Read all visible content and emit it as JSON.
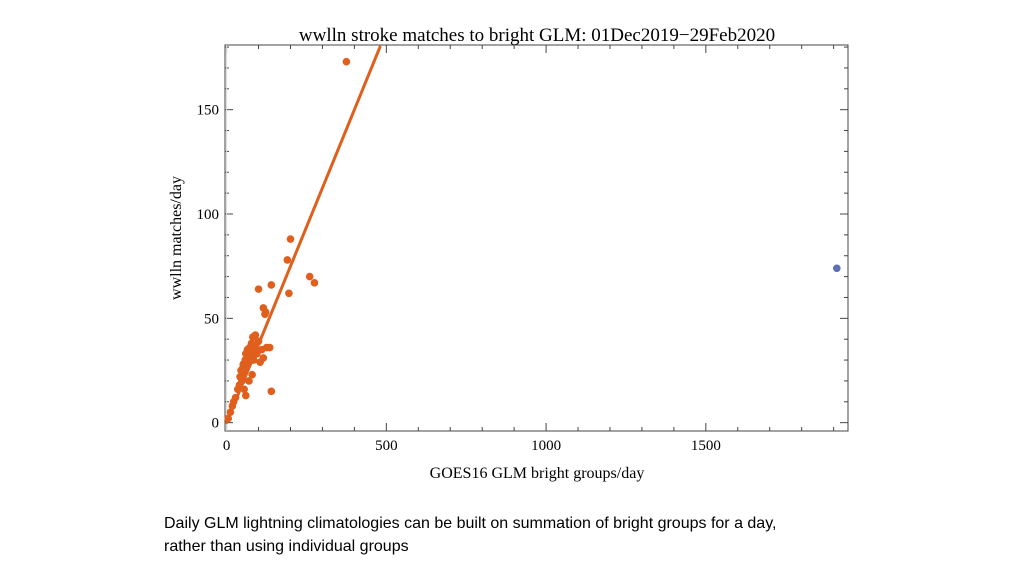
{
  "chart_data": {
    "type": "scatter",
    "title": "wwlln stroke matches to bright GLM: 01Dec2019−29Feb2020",
    "xlabel": "GOES16 GLM bright groups/day",
    "ylabel": "wwlln matches/day",
    "xlim": [
      -5,
      1945
    ],
    "ylim": [
      -4,
      181
    ],
    "x_ticks": [
      0,
      500,
      1000,
      1500
    ],
    "y_ticks": [
      0,
      50,
      100,
      150
    ],
    "grid": false,
    "colors": {
      "points": "#e05f1c",
      "fit": "#e05f1c",
      "outlier": "#5f6fb5"
    },
    "series": [
      {
        "role": "points",
        "points": [
          [
            5,
            2
          ],
          [
            12,
            5
          ],
          [
            18,
            8
          ],
          [
            22,
            10
          ],
          [
            28,
            12
          ],
          [
            35,
            16
          ],
          [
            40,
            18
          ],
          [
            42,
            22
          ],
          [
            45,
            25
          ],
          [
            48,
            20
          ],
          [
            50,
            26
          ],
          [
            52,
            28
          ],
          [
            55,
            24
          ],
          [
            58,
            30
          ],
          [
            60,
            33
          ],
          [
            62,
            27
          ],
          [
            65,
            35
          ],
          [
            68,
            31
          ],
          [
            70,
            29
          ],
          [
            72,
            36
          ],
          [
            75,
            33
          ],
          [
            78,
            38
          ],
          [
            80,
            34
          ],
          [
            82,
            41
          ],
          [
            85,
            30
          ],
          [
            88,
            37
          ],
          [
            90,
            42
          ],
          [
            95,
            33
          ],
          [
            100,
            39
          ],
          [
            105,
            29
          ],
          [
            110,
            35
          ],
          [
            115,
            31
          ],
          [
            120,
            52
          ],
          [
            125,
            36
          ],
          [
            135,
            36
          ],
          [
            140,
            15
          ],
          [
            55,
            16
          ],
          [
            60,
            13
          ],
          [
            70,
            20
          ],
          [
            80,
            23
          ],
          [
            100,
            64
          ],
          [
            115,
            55
          ],
          [
            122,
            53
          ],
          [
            140,
            66
          ],
          [
            190,
            78
          ],
          [
            200,
            88
          ],
          [
            195,
            62
          ],
          [
            260,
            70
          ],
          [
            275,
            67
          ],
          [
            375,
            173
          ]
        ]
      },
      {
        "role": "fit",
        "line": [
          [
            0,
            0
          ],
          [
            480,
            180
          ]
        ]
      },
      {
        "role": "outlier",
        "points": [
          [
            1910,
            74
          ]
        ]
      }
    ]
  },
  "caption": {
    "line1": "Daily GLM lightning climatologies can be built on summation of bright groups for a day,",
    "line2": "rather than using individual groups"
  }
}
